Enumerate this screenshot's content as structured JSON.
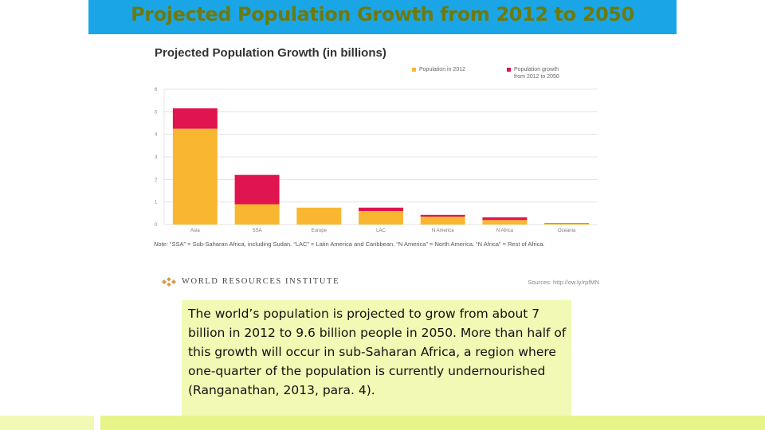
{
  "slide": {
    "title": "Projected Population Growth from 2012 to 2050",
    "body": "The world’s population is projected to grow from about 7 billion in 2012 to 9.6 billion people in 2050. More than half of this growth will occur in sub-Saharan Africa, a region where one-quarter of the population is currently undernourished (Ranganathan, 2013, para. 4)."
  },
  "figure": {
    "note_label": "Note:",
    "note": "“SSA” = Sub-Saharan Africa, including Sudan. “LAC” = Latin America and Caribbean. “N America” = North America. “N Africa” = Rest of Africa.",
    "org": "WORLD RESOURCES INSTITUTE",
    "sources": "Sources: http://ow.ly/rpfMN"
  },
  "colors": {
    "banner": "#1aa6e6",
    "population_2012": "#f9b731",
    "growth": "#e0144f",
    "textbox": "#f2f9b4"
  },
  "chart_data": {
    "type": "bar",
    "stacked": true,
    "title": "Projected Population Growth (in billions)",
    "categories": [
      "Asia",
      "SSA",
      "Europe",
      "LAC",
      "N America",
      "N Africa",
      "Oceania"
    ],
    "series": [
      {
        "name": "Population in 2012",
        "values": [
          4.25,
          0.9,
          0.75,
          0.6,
          0.35,
          0.2,
          0.04
        ]
      },
      {
        "name": "Population growth\nfrom 2012 to 2050",
        "values": [
          0.9,
          1.3,
          0.0,
          0.15,
          0.08,
          0.12,
          0.02
        ]
      }
    ],
    "ylim": [
      0,
      6
    ],
    "yticks": [
      0,
      1,
      2,
      3,
      4,
      5,
      6
    ],
    "xlabel": "",
    "ylabel": "",
    "grid": true,
    "legend": "top-right"
  }
}
